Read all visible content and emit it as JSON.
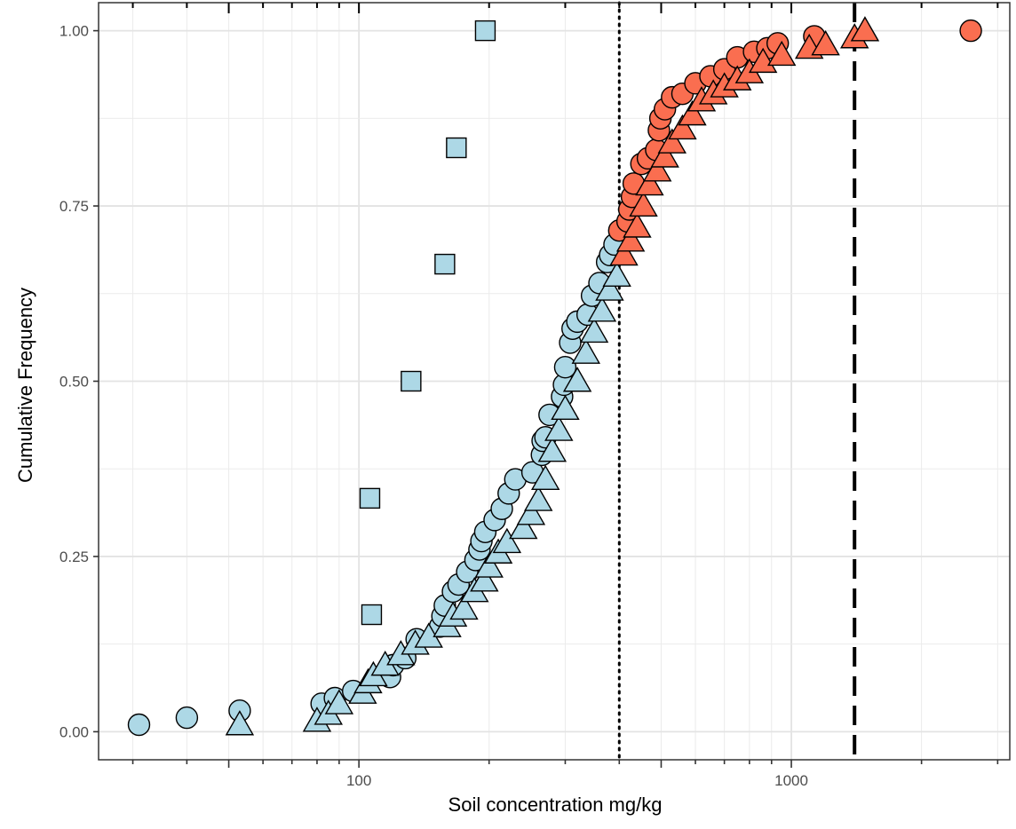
{
  "chart_data": {
    "type": "scatter",
    "xlabel": "Soil concentration mg/kg",
    "ylabel": "Cumulative Frequency",
    "xscale": "log",
    "xlim": [
      25,
      3200
    ],
    "ylim": [
      -0.04,
      1.04
    ],
    "x_ticks": [
      {
        "value": 100,
        "label": "100"
      },
      {
        "value": 1000,
        "label": "1000"
      }
    ],
    "y_ticks": [
      {
        "value": 0,
        "label": "0.00"
      },
      {
        "value": 0.25,
        "label": "0.25"
      },
      {
        "value": 0.5,
        "label": "0.50"
      },
      {
        "value": 0.75,
        "label": "0.75"
      },
      {
        "value": 1,
        "label": "1.00"
      }
    ],
    "grid": true,
    "reference_lines": [
      {
        "x": 400,
        "style": "dotted"
      },
      {
        "x": 1400,
        "style": "dashed"
      }
    ],
    "colors": {
      "below": "#add8e6",
      "above": "#fa6e50",
      "edge": "#000000"
    },
    "color_threshold": 400,
    "series": [
      {
        "marker": "square",
        "x": [
          107,
          106,
          132,
          158,
          168,
          196
        ],
        "y": [
          0.167,
          0.333,
          0.5,
          0.667,
          0.833,
          1.0
        ]
      },
      {
        "marker": "circle",
        "x": [
          31,
          40,
          53,
          82,
          88,
          97,
          118,
          120,
          128,
          136,
          154,
          156,
          158,
          165,
          170,
          178,
          186,
          190,
          192,
          196,
          206,
          214,
          222,
          230,
          252,
          265,
          266,
          270,
          276,
          295,
          298,
          300,
          308,
          312,
          320,
          338,
          346,
          360,
          375,
          381,
          390,
          400,
          418,
          422,
          428,
          432,
          450,
          466,
          487,
          494,
          498,
          510,
          530,
          560,
          600,
          650,
          700,
          750,
          820,
          880,
          930,
          1130,
          2600
        ],
        "y": [
          0.01,
          0.02,
          0.03,
          0.04,
          0.048,
          0.058,
          0.078,
          0.095,
          0.105,
          0.132,
          0.15,
          0.165,
          0.18,
          0.2,
          0.21,
          0.228,
          0.245,
          0.26,
          0.272,
          0.285,
          0.302,
          0.318,
          0.34,
          0.36,
          0.37,
          0.395,
          0.415,
          0.42,
          0.452,
          0.478,
          0.495,
          0.52,
          0.555,
          0.575,
          0.585,
          0.595,
          0.622,
          0.64,
          0.67,
          0.68,
          0.695,
          0.715,
          0.728,
          0.745,
          0.763,
          0.782,
          0.81,
          0.818,
          0.83,
          0.858,
          0.875,
          0.888,
          0.905,
          0.91,
          0.925,
          0.935,
          0.945,
          0.962,
          0.97,
          0.975,
          0.982,
          0.992,
          1.0
        ]
      },
      {
        "marker": "triangle",
        "x": [
          53,
          80,
          85,
          90,
          102,
          105,
          108,
          115,
          125,
          135,
          145,
          160,
          165,
          175,
          185,
          195,
          200,
          210,
          220,
          240,
          250,
          260,
          270,
          280,
          290,
          300,
          320,
          335,
          350,
          365,
          380,
          395,
          410,
          425,
          440,
          455,
          470,
          490,
          510,
          530,
          560,
          590,
          620,
          660,
          700,
          750,
          800,
          860,
          950,
          1100,
          1200,
          1400,
          1480
        ],
        "y": [
          0.01,
          0.015,
          0.025,
          0.04,
          0.055,
          0.07,
          0.08,
          0.095,
          0.11,
          0.125,
          0.135,
          0.15,
          0.165,
          0.175,
          0.2,
          0.215,
          0.235,
          0.255,
          0.27,
          0.29,
          0.31,
          0.33,
          0.36,
          0.4,
          0.43,
          0.46,
          0.5,
          0.54,
          0.57,
          0.6,
          0.63,
          0.65,
          0.68,
          0.7,
          0.72,
          0.75,
          0.78,
          0.8,
          0.82,
          0.84,
          0.86,
          0.88,
          0.9,
          0.91,
          0.92,
          0.93,
          0.94,
          0.955,
          0.965,
          0.975,
          0.98,
          0.99,
          1.0
        ]
      }
    ]
  }
}
